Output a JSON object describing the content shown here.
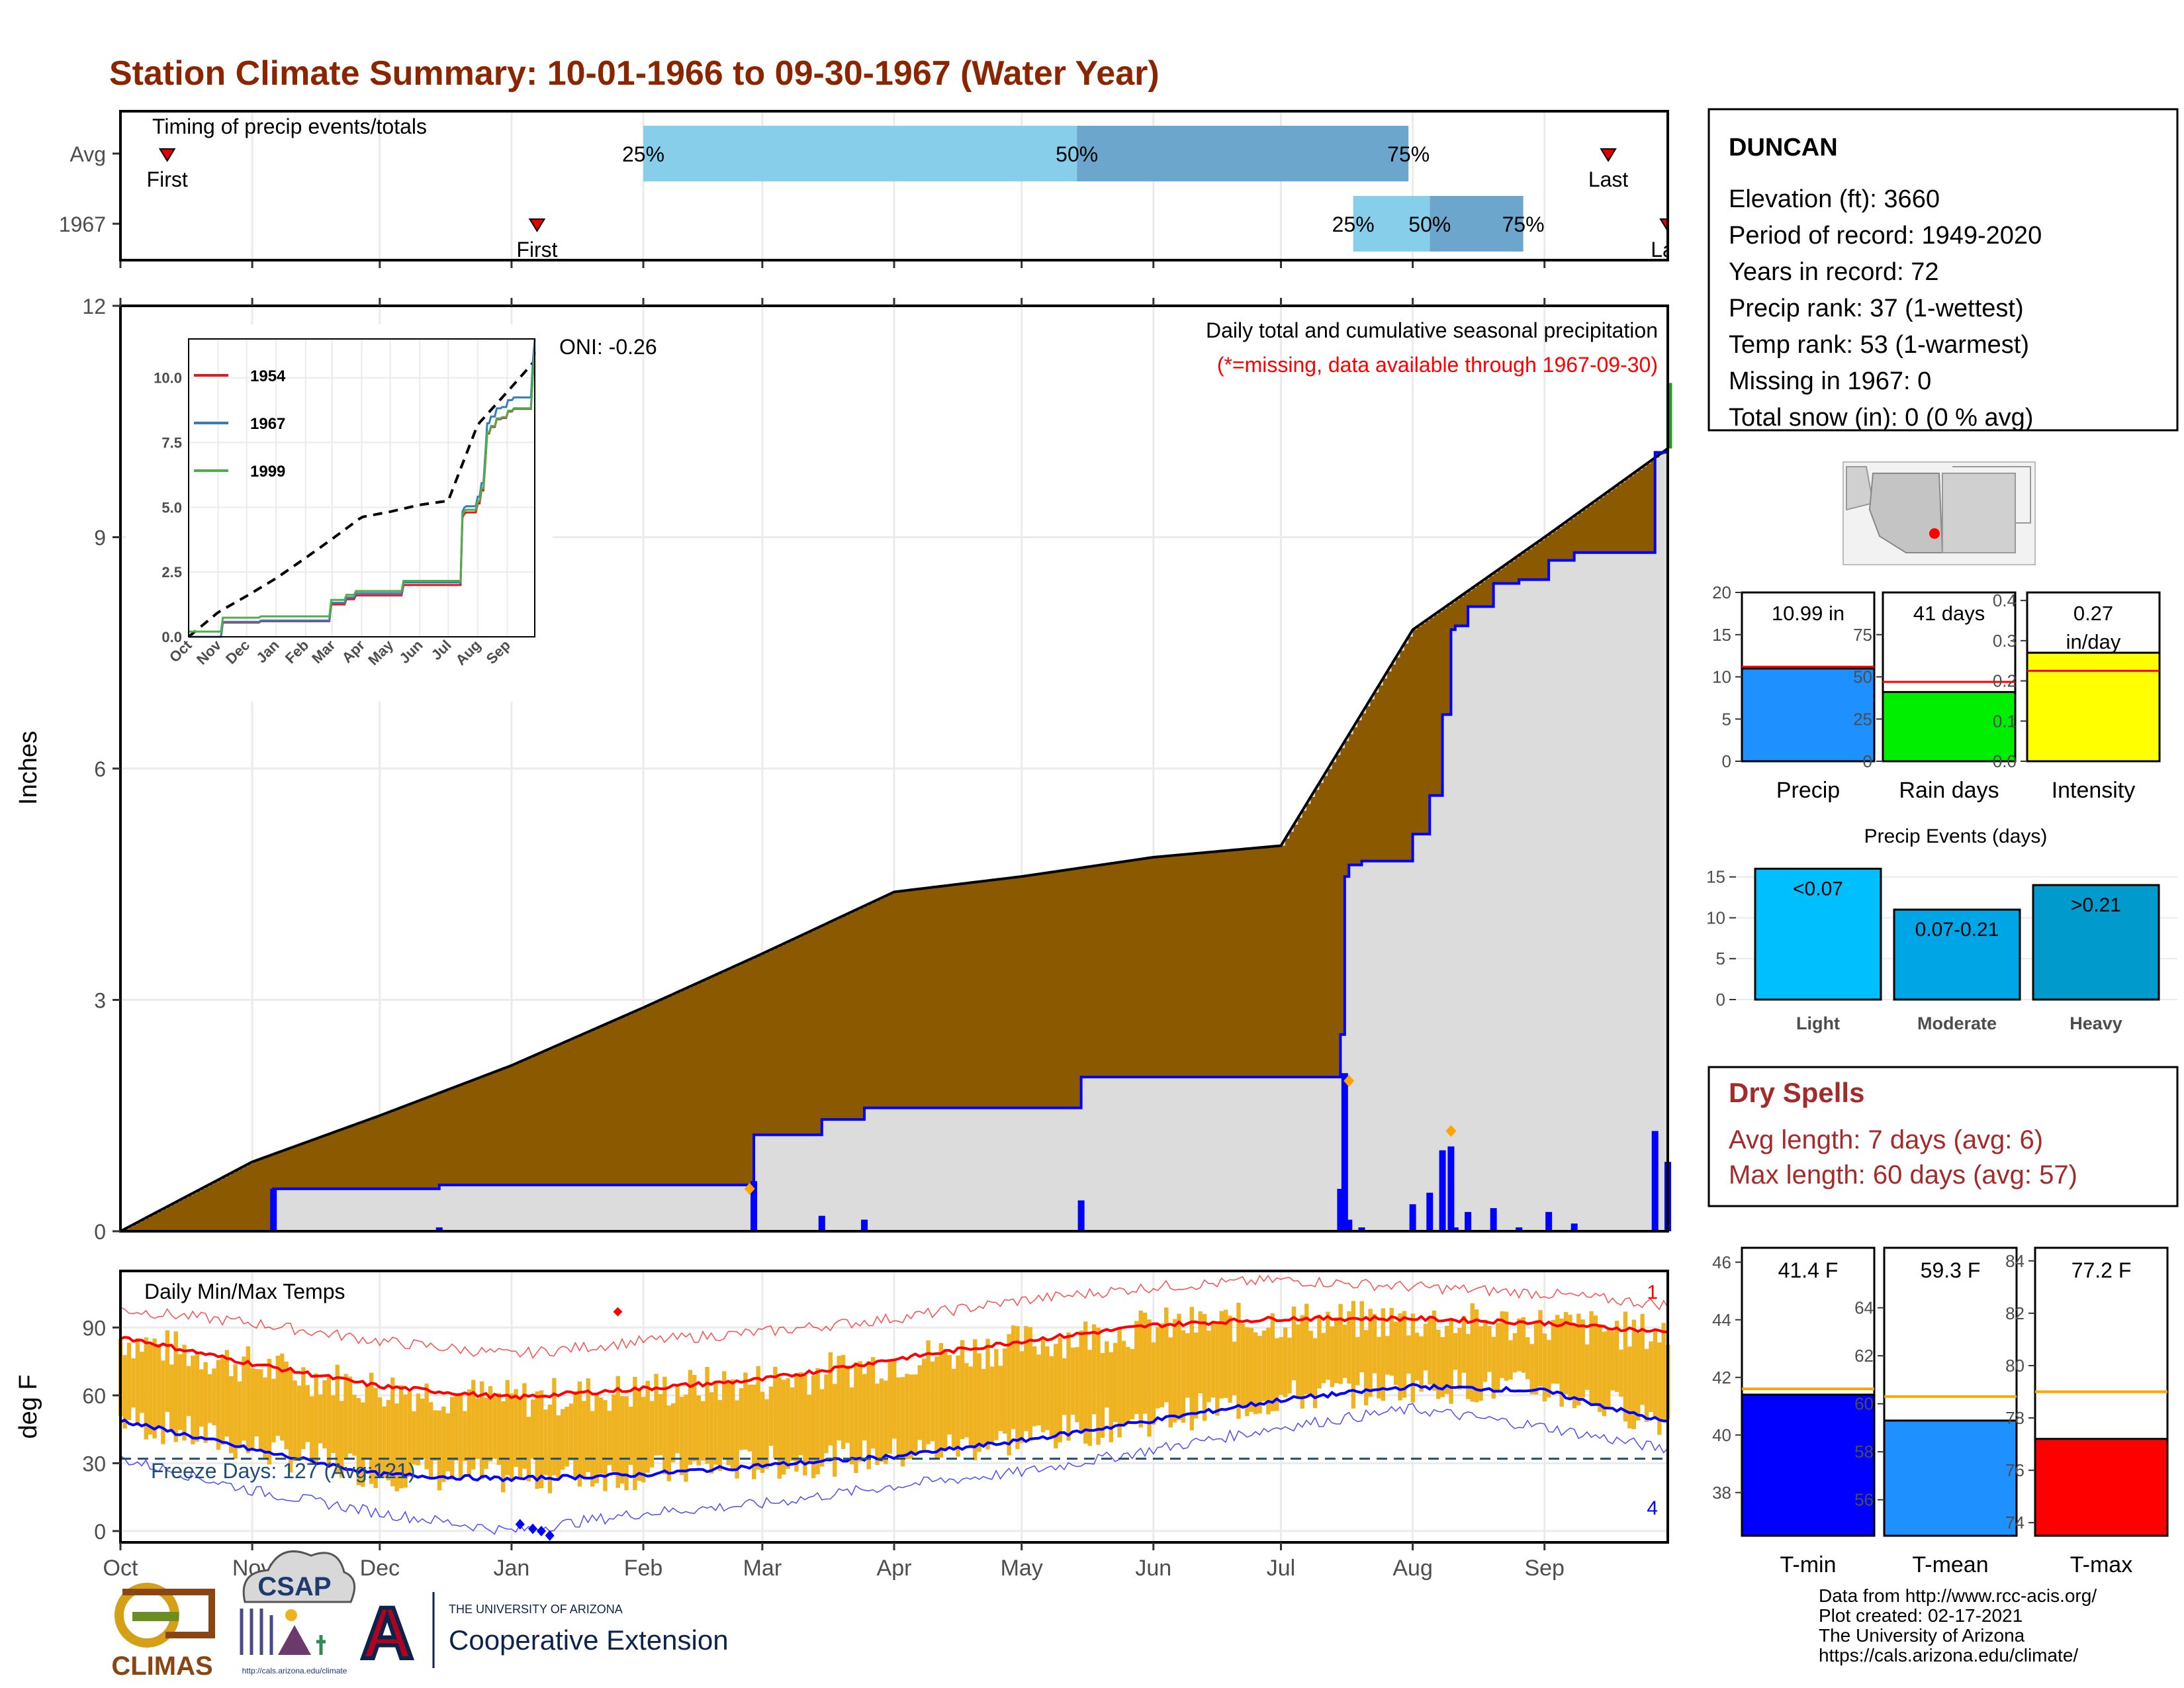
{
  "title": "Station Climate Summary: 10-01-1966 to 09-30-1967 (Water Year)",
  "colors": {
    "title": "#8B2500",
    "brown_fill": "#8B5A00",
    "gray_fill": "#DCDCDC",
    "precip_line": "#0000FF",
    "p25_50": "#87CEEB",
    "p50_75": "#6CA6CD",
    "temp_bar": "#EFB322",
    "max_line": "#FF0000",
    "min_line": "#0000FF",
    "dry_spells": "#A52A2A",
    "green_fill": "#1F9A1F",
    "marker": "#FFA500"
  },
  "timing": {
    "label": "Timing of precip events/totals",
    "rows": [
      {
        "name": "Avg",
        "first_label": "First",
        "last_label": "Last",
        "first": "Oct 12",
        "p25": "Feb 1",
        "p50": "May 14",
        "p75": "Jul 31",
        "last": "Sep 16"
      },
      {
        "name": "1967",
        "first_label": "First",
        "last_label": "Las",
        "first": "Jan 7",
        "p25": "Jul 18",
        "p50": "Aug 5",
        "p75": "Aug 27",
        "last": "Sep 30"
      }
    ],
    "pct_labels": [
      "25%",
      "50%",
      "75%"
    ]
  },
  "month_labels": [
    "Oct",
    "Nov",
    "Dec",
    "Jan",
    "Feb",
    "Mar",
    "Apr",
    "May",
    "Jun",
    "Jul",
    "Aug",
    "Sep"
  ],
  "precip_panel": {
    "ylabel": "Inches",
    "yticks": [
      0,
      3,
      6,
      9,
      12
    ],
    "oni": "ONI: -0.26",
    "caption": "Daily total and cumulative seasonal precipitation",
    "caption_red": "(*=missing, data available through 1967-09-30)"
  },
  "inset": {
    "yticks": [
      "0.0",
      "2.5",
      "5.0",
      "7.5",
      "10.0"
    ],
    "xticks": [
      "Oct",
      "Nov",
      "Dec",
      "Jan",
      "Feb",
      "Mar",
      "Apr",
      "May",
      "Jun",
      "Jul",
      "Aug",
      "Sep"
    ],
    "legend": [
      {
        "name": "1954",
        "color": "#E41A1C"
      },
      {
        "name": "1967",
        "color": "#377EB8"
      },
      {
        "name": "1999",
        "color": "#4DAF4A"
      }
    ]
  },
  "info": {
    "station": "DUNCAN",
    "lines": [
      "Elevation (ft): 3660",
      "Period of record: 1949-2020",
      "Years in record: 72",
      "Precip rank: 37 (1-wettest)",
      "Temp rank: 53 (1-warmest)",
      "Missing in 1967: 0",
      "Total snow (in): 0 (0 % avg)"
    ]
  },
  "summary_bars": [
    {
      "name": "Precip",
      "label": "10.99 in",
      "value": 10.99,
      "avg": 11.2,
      "ymax": 20,
      "yticks": [
        "0",
        "5",
        "10",
        "15",
        "20"
      ],
      "tick_vals": [
        0,
        5,
        10,
        15,
        20
      ],
      "color": "#1E90FF"
    },
    {
      "name": "Rain days",
      "label": "41 days",
      "value": 41,
      "avg": 47,
      "ymax": 100,
      "yticks": [
        "0",
        "25",
        "50",
        "75"
      ],
      "tick_vals": [
        0,
        25,
        50,
        75
      ],
      "color": "#00EE00"
    },
    {
      "name": "Intensity",
      "label": "0.27 in/day",
      "value": 0.27,
      "avg": 0.225,
      "ymax": 0.42,
      "yticks": [
        "0.0",
        "0.1",
        "0.2",
        "0.3",
        "0.4"
      ],
      "tick_vals": [
        0,
        0.1,
        0.2,
        0.3,
        0.4
      ],
      "color": "#FFFF00"
    }
  ],
  "events": {
    "title": "Precip Events (days)",
    "ymax": 17,
    "yticks": [
      0,
      5,
      10,
      15
    ],
    "bars": [
      {
        "category": "Light",
        "label": "<0.07",
        "value": 16,
        "color": "#00BFFF"
      },
      {
        "category": "Moderate",
        "label": "0.07-0.21",
        "value": 11,
        "color": "#00A5E6"
      },
      {
        "category": "Heavy",
        "label": ">0.21",
        "value": 14,
        "color": "#009ACD"
      }
    ]
  },
  "dry_spells": {
    "title": "Dry Spells",
    "avg_length": "Avg length: 7 days (avg: 6)",
    "max_length": "Max length: 60 days (avg: 57)"
  },
  "temp_panel": {
    "ylabel": "deg F",
    "label": "Daily Min/Max Temps",
    "yticks": [
      0,
      30,
      60,
      90
    ],
    "freeze": "Freeze Days: 127 (Avg:121)",
    "record_high_count": "1",
    "record_low_count": "4"
  },
  "temp_bars": [
    {
      "name": "T-min",
      "label": "41.4 F",
      "value": 41.4,
      "avg": 41.6,
      "ymin": 36.5,
      "ymax": 46.5,
      "yticks": [
        "38",
        "40",
        "42",
        "44",
        "46"
      ],
      "tick_vals": [
        38,
        40,
        42,
        44,
        46
      ],
      "color": "#0000FF"
    },
    {
      "name": "T-mean",
      "label": "59.3 F",
      "value": 59.3,
      "avg": 60.3,
      "ymin": 54.5,
      "ymax": 66.5,
      "yticks": [
        "56",
        "58",
        "60",
        "62",
        "64"
      ],
      "tick_vals": [
        56,
        58,
        60,
        62,
        64
      ],
      "color": "#1E90FF"
    },
    {
      "name": "T-max",
      "label": "77.2 F",
      "value": 77.2,
      "avg": 79.0,
      "ymin": 73.5,
      "ymax": 84.5,
      "yticks": [
        "74",
        "76",
        "78",
        "80",
        "82",
        "84"
      ],
      "tick_vals": [
        74,
        76,
        78,
        80,
        82,
        84
      ],
      "color": "#FF0000"
    }
  ],
  "footer": {
    "lines": [
      "Data from http://www.rcc-acis.org/",
      "Plot created: 02-17-2021",
      "The University of Arizona",
      "https://cals.arizona.edu/climate/"
    ],
    "logo_climas": "CLIMAS",
    "logo_csap": "CSAP",
    "logo_csap_url": "http://cals.arizona.edu/climate",
    "ua_small": "THE UNIVERSITY OF ARIZONA",
    "ua_big": "Cooperative Extension",
    "ua_letter": "A"
  },
  "chart_data": [
    {
      "type": "area",
      "title": "Daily total and cumulative seasonal precipitation",
      "ylabel": "Inches",
      "ylim": [
        0,
        12
      ],
      "x": [
        "Oct 1",
        "Nov 5",
        "Nov 6",
        "Dec 15",
        "Jan 15",
        "Feb 26",
        "Feb 27",
        "Mar 15",
        "Mar 25",
        "May 14",
        "May 15",
        "Jul 14",
        "Jul 15",
        "Jul 16",
        "Jul 17",
        "Jul 20",
        "Jul 28",
        "Aug 1",
        "Aug 5",
        "Aug 8",
        "Aug 10",
        "Aug 11",
        "Aug 14",
        "Aug 20",
        "Aug 26",
        "Sep 2",
        "Sep 8",
        "Sep 15",
        "Sep 26",
        "Sep 27",
        "Sep 30"
      ],
      "series": [
        {
          "name": "1967",
          "values": [
            0,
            0,
            0.55,
            0.6,
            0.6,
            0.6,
            1.25,
            1.45,
            1.6,
            1.6,
            2.0,
            2.0,
            2.55,
            4.6,
            4.75,
            4.8,
            4.8,
            5.15,
            5.65,
            6.7,
            7.8,
            7.85,
            8.1,
            8.4,
            8.45,
            8.7,
            8.8,
            8.8,
            8.8,
            10.1,
            11.0
          ]
        }
      ],
      "average_cumulative": {
        "x": [
          "Oct 1",
          "Nov 1",
          "Dec 1",
          "Jan 1",
          "Feb 1",
          "Mar 1",
          "Apr 1",
          "May 1",
          "Jun 1",
          "Jul 1",
          "Aug 1",
          "Sep 1",
          "Sep 30"
        ],
        "values": [
          0,
          0.9,
          1.5,
          2.15,
          2.9,
          3.6,
          4.4,
          4.6,
          4.85,
          5.0,
          7.8,
          9.0,
          10.15
        ]
      },
      "daily_marked": [
        {
          "x": "Feb 26",
          "value": 0.55
        },
        {
          "x": "Jul 17",
          "value": 1.95
        },
        {
          "x": "Aug 10",
          "value": 1.3
        }
      ]
    },
    {
      "type": "line",
      "title": "Daily Min/Max Temps",
      "ylabel": "deg F",
      "ylim": [
        -5,
        115
      ],
      "x": [
        "Oct 1",
        "Nov 1",
        "Dec 1",
        "Jan 1",
        "Feb 1",
        "Mar 1",
        "Apr 1",
        "May 1",
        "Jun 1",
        "Jul 1",
        "Aug 1",
        "Sep 1",
        "Sep 30"
      ],
      "series": [
        {
          "name": "avg max",
          "values": [
            86,
            74,
            64,
            59,
            63,
            67,
            76,
            84,
            91,
            94,
            94,
            92,
            88
          ]
        },
        {
          "name": "avg min",
          "values": [
            49,
            36,
            25,
            23,
            25,
            29,
            33,
            40,
            49,
            58,
            64,
            62,
            48
          ]
        },
        {
          "name": "record max",
          "values": [
            98,
            92,
            84,
            78,
            84,
            88,
            94,
            102,
            108,
            111,
            108,
            105,
            100
          ]
        },
        {
          "name": "record min",
          "values": [
            32,
            18,
            8,
            0,
            8,
            12,
            20,
            26,
            36,
            46,
            54,
            46,
            36
          ]
        }
      ],
      "freeze_line": 32
    }
  ]
}
